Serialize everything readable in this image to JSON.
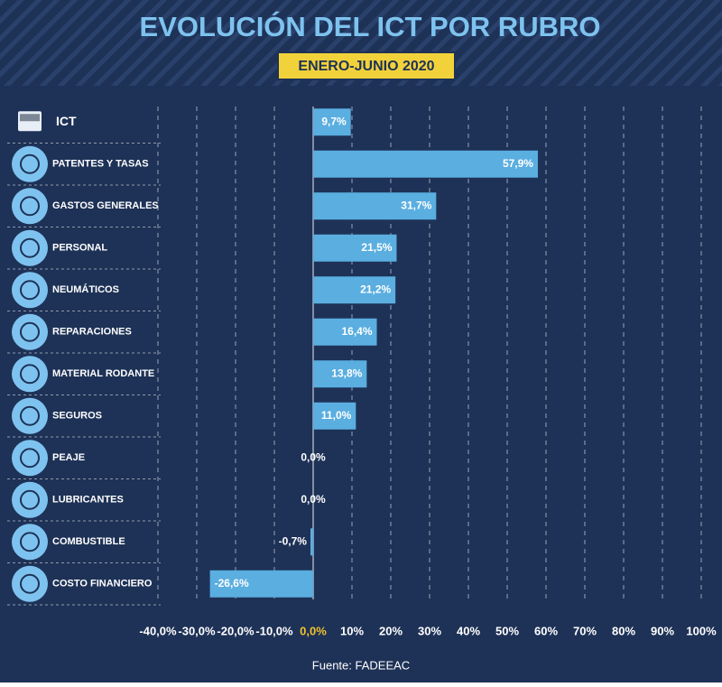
{
  "chart_data": {
    "type": "bar",
    "orientation": "horizontal",
    "title": "EVOLUCIÓN DEL ICT POR RUBRO",
    "subtitle": "ENERO-JUNIO 2020",
    "source": "Fuente: FADEEAC",
    "categories": [
      "ICT",
      "PATENTES Y TASAS",
      "GASTOS GENERALES",
      "PERSONAL",
      "NEUMÁTICOS",
      "REPARACIONES",
      "MATERIAL RODANTE",
      "SEGUROS",
      "PEAJE",
      "LUBRICANTES",
      "COMBUSTIBLE",
      "COSTO FINANCIERO"
    ],
    "values": [
      9.7,
      57.9,
      31.7,
      21.5,
      21.2,
      16.4,
      13.8,
      11.0,
      0,
      0,
      -0.7,
      -26.6
    ],
    "value_labels": [
      "9,7%",
      "57,9%",
      "31,7%",
      "21,5%",
      "21,2%",
      "16,4%",
      "13,8%",
      "11,0%",
      "0,0%",
      "0,0%",
      "-0,7%",
      "-26,6%"
    ],
    "color": "#5aaee0",
    "xlim": [
      -40,
      100
    ],
    "xticks": [
      {
        "value": -40,
        "label": "-40,0%"
      },
      {
        "value": -30,
        "label": "-30,0%"
      },
      {
        "value": -20,
        "label": "-20,0%"
      },
      {
        "value": -10,
        "label": "-10,0%"
      },
      {
        "value": 0,
        "label": "0,0%"
      },
      {
        "value": 10,
        "label": "10%"
      },
      {
        "value": 20,
        "label": "20%"
      },
      {
        "value": 30,
        "label": "30%"
      },
      {
        "value": 40,
        "label": "40%"
      },
      {
        "value": 50,
        "label": "50%"
      },
      {
        "value": 60,
        "label": "60%"
      },
      {
        "value": 70,
        "label": "70%"
      },
      {
        "value": 80,
        "label": "80%"
      },
      {
        "value": 90,
        "label": "90%"
      },
      {
        "value": 100,
        "label": "100%"
      }
    ],
    "zero_tick_color": "#f2c12e",
    "grid": true
  }
}
